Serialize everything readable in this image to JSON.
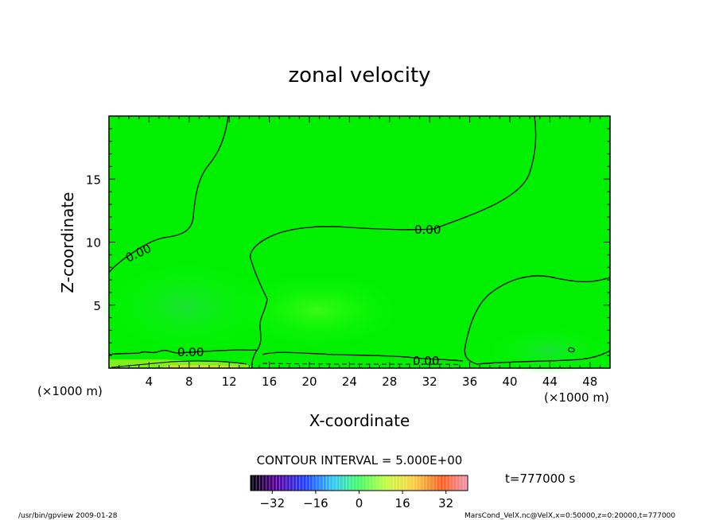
{
  "chart_data": {
    "type": "contour",
    "title": "zonal velocity",
    "xlabel": "X-coordinate",
    "ylabel": "Z-coordinate",
    "x_unit": "(×1000 m)",
    "y_unit": "",
    "xlim": [
      0,
      50
    ],
    "ylim": [
      0,
      20
    ],
    "x_ticks": [
      4,
      8,
      12,
      16,
      20,
      24,
      28,
      32,
      36,
      40,
      44,
      48
    ],
    "y_ticks": [
      5,
      10,
      15
    ],
    "contour_interval_label": "CONTOUR INTERVAL = 5.000E+00",
    "contour_levels_labeled": [
      "0.00",
      "0.00",
      "0.00",
      "0.00"
    ],
    "field_range_note": "values near 0 over most of domain",
    "colorbar": {
      "range": [
        -40,
        40
      ],
      "ticks": [
        -32,
        -16,
        0,
        16,
        32
      ],
      "colors": [
        "#000000",
        "#5a00a0",
        "#2040ff",
        "#30c8ff",
        "#40ff60",
        "#c0ff40",
        "#ffd040",
        "#ff6020",
        "#ff90b0"
      ]
    },
    "time_label": "t=777000 s",
    "footer_left": "/usr/bin/gpview  2009-01-28",
    "footer_right": "MarsCond_VelX.nc@VelX,x=0:50000,z=0:20000,t=777000"
  }
}
